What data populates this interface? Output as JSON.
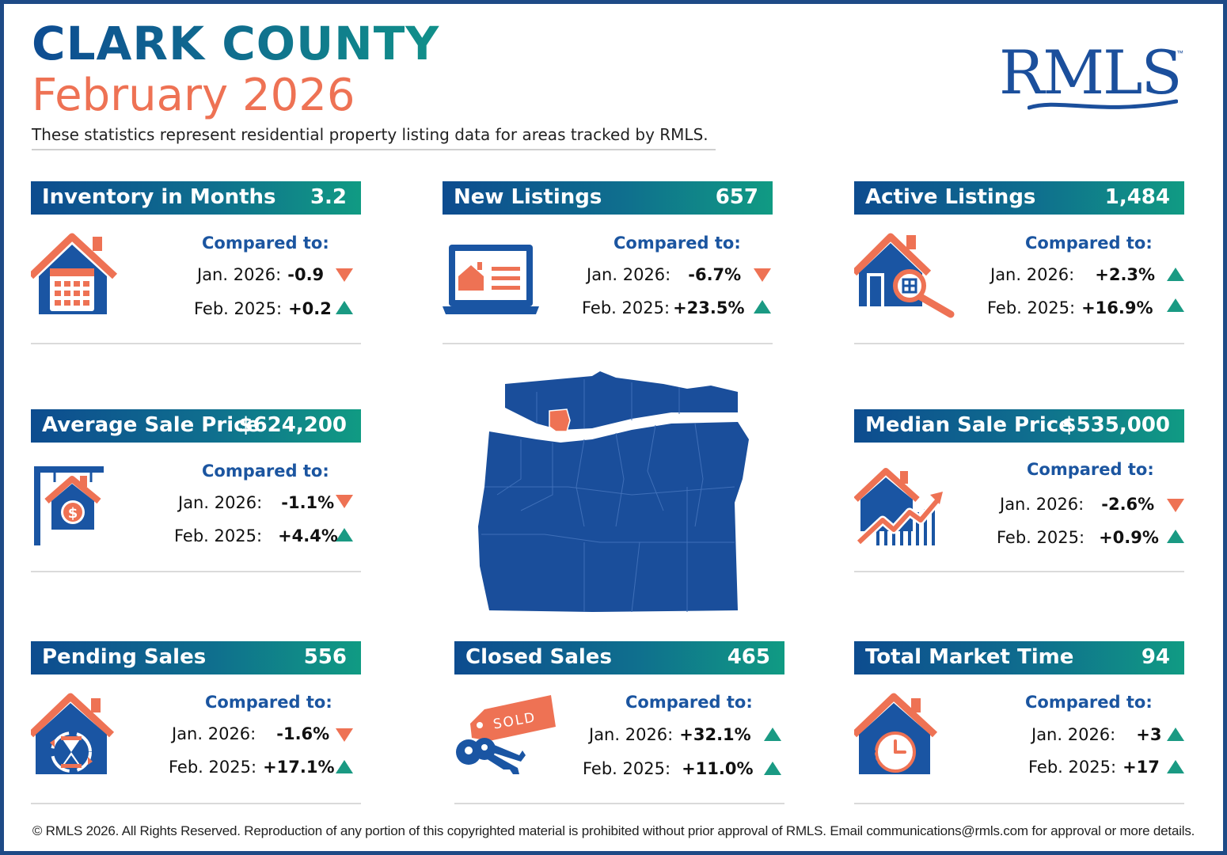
{
  "header": {
    "title": "CLARK COUNTY",
    "subtitle": "February 2026",
    "description": "These statistics represent residential property listing data for areas tracked by RMLS.",
    "logo_text": "RMLS",
    "logo_tm": "™"
  },
  "colors": {
    "accent_blue": "#0e4c92",
    "accent_teal": "#11908a",
    "accent_coral": "#ee7254",
    "up": "#1a9a83",
    "down": "#ee7254"
  },
  "cards": {
    "inventory": {
      "label": "Inventory in Months",
      "value": "3.2",
      "compared_to": "Compared to:",
      "jan_label": "Jan. 2026:",
      "jan_value": "-0.9",
      "jan_trend": "down",
      "feb_label": "Feb. 2025:",
      "feb_value": "+0.2",
      "feb_trend": "up",
      "icon": "house-calendar-icon"
    },
    "new_listings": {
      "label": "New Listings",
      "value": "657",
      "compared_to": "Compared to:",
      "jan_label": "Jan. 2026:",
      "jan_value": "-6.7%",
      "jan_trend": "down",
      "feb_label": "Feb. 2025:",
      "feb_value": "+23.5%",
      "feb_trend": "up",
      "icon": "laptop-listing-icon"
    },
    "active_listings": {
      "label": "Active Listings",
      "value": "1,484",
      "compared_to": "Compared to:",
      "jan_label": "Jan. 2026:",
      "jan_value": "+2.3%",
      "jan_trend": "up",
      "feb_label": "Feb. 2025:",
      "feb_value": "+16.9%",
      "feb_trend": "up",
      "icon": "house-magnifier-icon"
    },
    "avg_price": {
      "label": "Average Sale Price",
      "value": "$624,200",
      "compared_to": "Compared to:",
      "jan_label": "Jan. 2026:",
      "jan_value": "-1.1%",
      "jan_trend": "down",
      "feb_label": "Feb. 2025:",
      "feb_value": "+4.4%",
      "feb_trend": "up",
      "icon": "house-sign-dollar-icon"
    },
    "median_price": {
      "label": "Median Sale Price",
      "value": "$535,000",
      "compared_to": "Compared to:",
      "jan_label": "Jan. 2026:",
      "jan_value": "-2.6%",
      "jan_trend": "down",
      "feb_label": "Feb. 2025:",
      "feb_value": "+0.9%",
      "feb_trend": "up",
      "icon": "house-chart-icon"
    },
    "pending": {
      "label": "Pending Sales",
      "value": "556",
      "compared_to": "Compared to:",
      "jan_label": "Jan. 2026:",
      "jan_value": "-1.6%",
      "jan_trend": "down",
      "feb_label": "Feb. 2025:",
      "feb_value": "+17.1%",
      "feb_trend": "up",
      "icon": "house-hourglass-icon"
    },
    "closed": {
      "label": "Closed Sales",
      "value": "465",
      "compared_to": "Compared to:",
      "jan_label": "Jan. 2026:",
      "jan_value": "+32.1%",
      "jan_trend": "up",
      "feb_label": "Feb. 2025:",
      "feb_value": "+11.0%",
      "feb_trend": "up",
      "icon": "sold-tag-keys-icon",
      "tag_text": "SOLD"
    },
    "market_time": {
      "label": "Total Market Time",
      "value": "94",
      "compared_to": "Compared to:",
      "jan_label": "Jan. 2026:",
      "jan_value": "+3",
      "jan_trend": "up",
      "feb_label": "Feb. 2025:",
      "feb_value": "+17",
      "feb_trend": "up",
      "icon": "house-clock-icon"
    }
  },
  "map": {
    "icon": "oregon-washington-map-icon",
    "highlight": "clark-county"
  },
  "footer": {
    "text": "© RMLS 2026. All Rights Reserved. Reproduction of any portion of this copyrighted material is prohibited without prior approval of RMLS. Email communications@rmls.com for approval or more details."
  }
}
